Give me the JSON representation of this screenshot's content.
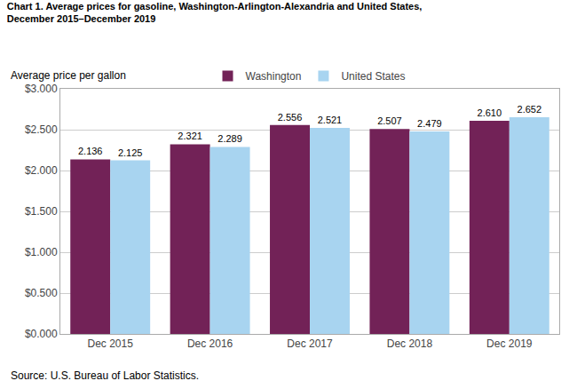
{
  "chart_data": {
    "type": "bar",
    "title": "Chart 1. Average prices for gasoline, Washington-Arlington-Alexandria and United States,",
    "subtitle": "December 2015–December 2019",
    "ylabel": "Average price per gallon",
    "annotations": [
      "Source: U.S. Bureau of Labor Statistics."
    ],
    "categories": [
      "Dec 2015",
      "Dec 2016",
      "Dec 2017",
      "Dec 2018",
      "Dec 2019"
    ],
    "series": [
      {
        "name": "Washington",
        "color": "#722257",
        "values": [
          2.136,
          2.321,
          2.556,
          2.507,
          2.61
        ],
        "value_labels": [
          "2.136",
          "2.321",
          "2.556",
          "2.507",
          "2.610"
        ]
      },
      {
        "name": "United States",
        "color": "#A8D4F0",
        "values": [
          2.125,
          2.289,
          2.521,
          2.479,
          2.652
        ],
        "value_labels": [
          "2.125",
          "2.289",
          "2.521",
          "2.479",
          "2.652"
        ]
      }
    ],
    "ylim": [
      0,
      3.0
    ],
    "yticks": [
      {
        "value": 0.0,
        "label": "$0.000"
      },
      {
        "value": 0.5,
        "label": "$0.500"
      },
      {
        "value": 1.0,
        "label": "$1.000"
      },
      {
        "value": 1.5,
        "label": "$1.500"
      },
      {
        "value": 2.0,
        "label": "$2.000"
      },
      {
        "value": 2.5,
        "label": "$2.500"
      },
      {
        "value": 3.0,
        "label": "$3.000"
      }
    ],
    "grid": true,
    "legend": "upper center",
    "data_labels": true
  }
}
